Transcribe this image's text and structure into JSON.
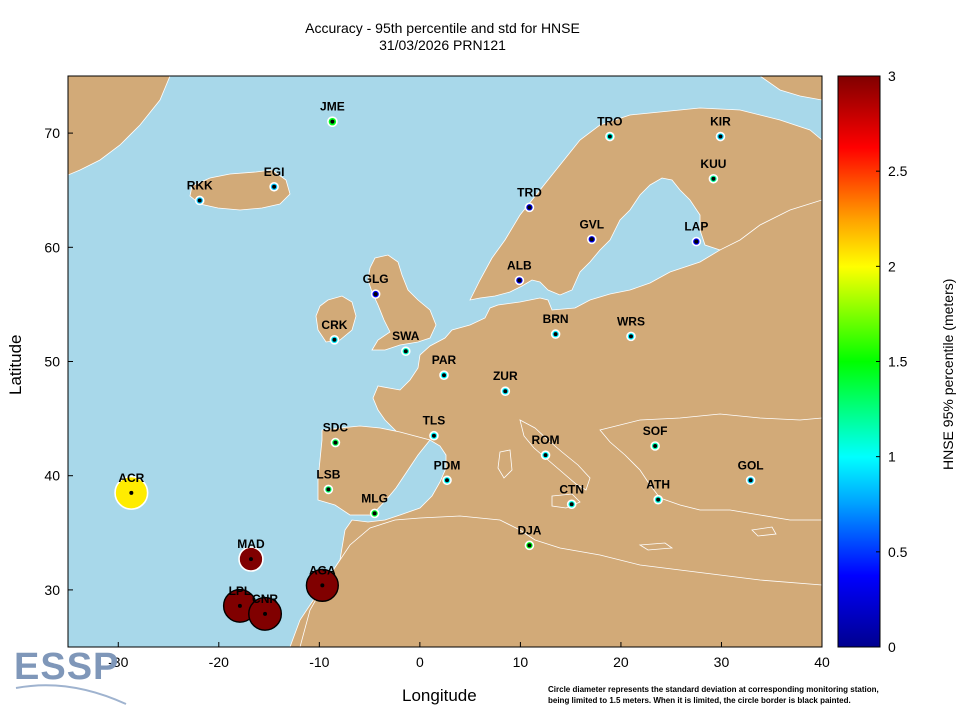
{
  "title": "Accuracy - 95th percentile and std for HNSE",
  "subtitle": "31/03/2026 PRN121",
  "xlabel": "Longitude",
  "ylabel": "Latitude",
  "colorbar": {
    "label": "HNSE 95% percentile (meters)",
    "min": 0,
    "max": 3,
    "ticks": [
      "0",
      "0.5",
      "1",
      "1.5",
      "2",
      "2.5",
      "3"
    ]
  },
  "footnote_line1": "Circle diameter represents the standard deviation at corresponding monitoring station,",
  "footnote_line2": "being limited to 1.5 meters. When it is limited, the circle border is black painted.",
  "logo": "ESSP",
  "colors": {
    "sea": "#a8d8ea",
    "land": "#d2aa78",
    "border": "#ffffff"
  },
  "chart_data": {
    "type": "scatter",
    "xlim": [
      -35,
      40
    ],
    "ylim": [
      25,
      75
    ],
    "xticks": [
      "-30",
      "-20",
      "-10",
      "0",
      "10",
      "20",
      "30",
      "40"
    ],
    "yticks": [
      "30",
      "40",
      "50",
      "60",
      "70"
    ],
    "stations": [
      {
        "name": "JME",
        "lon": -8.7,
        "lat": 71.0,
        "p95": 1.45,
        "std": 0.25,
        "limited": false
      },
      {
        "name": "TRO",
        "lon": 18.9,
        "lat": 69.7,
        "p95": 1.05,
        "std": 0.18,
        "limited": false
      },
      {
        "name": "KIR",
        "lon": 29.9,
        "lat": 69.7,
        "p95": 0.9,
        "std": 0.14,
        "limited": false
      },
      {
        "name": "EGI",
        "lon": -14.5,
        "lat": 65.3,
        "p95": 0.85,
        "std": 0.13,
        "limited": false
      },
      {
        "name": "RKK",
        "lon": -21.9,
        "lat": 64.1,
        "p95": 0.85,
        "std": 0.13,
        "limited": false
      },
      {
        "name": "KUU",
        "lon": 29.2,
        "lat": 66.0,
        "p95": 1.2,
        "std": 0.19,
        "limited": false
      },
      {
        "name": "TRD",
        "lon": 10.9,
        "lat": 63.5,
        "p95": 0.3,
        "std": 0.09,
        "limited": false
      },
      {
        "name": "GVL",
        "lon": 17.1,
        "lat": 60.7,
        "p95": 0.3,
        "std": 0.09,
        "limited": false
      },
      {
        "name": "LAP",
        "lon": 27.5,
        "lat": 60.5,
        "p95": 0.35,
        "std": 0.1,
        "limited": false
      },
      {
        "name": "ALB",
        "lon": 9.9,
        "lat": 57.1,
        "p95": 0.3,
        "std": 0.07,
        "limited": false
      },
      {
        "name": "GLG",
        "lon": -4.4,
        "lat": 55.9,
        "p95": 0.35,
        "std": 0.08,
        "limited": false
      },
      {
        "name": "CRK",
        "lon": -8.5,
        "lat": 51.9,
        "p95": 0.95,
        "std": 0.12,
        "limited": false
      },
      {
        "name": "SWA",
        "lon": -1.4,
        "lat": 50.9,
        "p95": 1.1,
        "std": 0.14,
        "limited": false
      },
      {
        "name": "BRN",
        "lon": 13.5,
        "lat": 52.4,
        "p95": 0.95,
        "std": 0.13,
        "limited": false
      },
      {
        "name": "WRS",
        "lon": 21.0,
        "lat": 52.2,
        "p95": 0.95,
        "std": 0.12,
        "limited": false
      },
      {
        "name": "PAR",
        "lon": 2.4,
        "lat": 48.8,
        "p95": 1.0,
        "std": 0.14,
        "limited": false
      },
      {
        "name": "ZUR",
        "lon": 8.5,
        "lat": 47.4,
        "p95": 0.95,
        "std": 0.12,
        "limited": false
      },
      {
        "name": "TLS",
        "lon": 1.4,
        "lat": 43.5,
        "p95": 1.0,
        "std": 0.13,
        "limited": false
      },
      {
        "name": "SDC",
        "lon": -8.4,
        "lat": 42.9,
        "p95": 1.35,
        "std": 0.16,
        "limited": false
      },
      {
        "name": "ROM",
        "lon": 12.5,
        "lat": 41.8,
        "p95": 1.0,
        "std": 0.12,
        "limited": false
      },
      {
        "name": "SOF",
        "lon": 23.4,
        "lat": 42.6,
        "p95": 1.15,
        "std": 0.15,
        "limited": false
      },
      {
        "name": "LSB",
        "lon": -9.1,
        "lat": 38.8,
        "p95": 1.3,
        "std": 0.16,
        "limited": false
      },
      {
        "name": "PDM",
        "lon": 2.7,
        "lat": 39.6,
        "p95": 1.0,
        "std": 0.12,
        "limited": false
      },
      {
        "name": "GOL",
        "lon": 32.9,
        "lat": 39.6,
        "p95": 0.9,
        "std": 0.19,
        "limited": false
      },
      {
        "name": "ATH",
        "lon": 23.7,
        "lat": 37.9,
        "p95": 1.05,
        "std": 0.14,
        "limited": false
      },
      {
        "name": "CTN",
        "lon": 15.1,
        "lat": 37.5,
        "p95": 1.05,
        "std": 0.12,
        "limited": false
      },
      {
        "name": "MLG",
        "lon": -4.5,
        "lat": 36.7,
        "p95": 1.4,
        "std": 0.19,
        "limited": false
      },
      {
        "name": "DJA",
        "lon": 10.9,
        "lat": 33.9,
        "p95": 1.45,
        "std": 0.17,
        "limited": false
      },
      {
        "name": "ACR",
        "lon": -28.7,
        "lat": 38.5,
        "p95": 2.05,
        "std": 0.9,
        "limited": false
      },
      {
        "name": "MAD",
        "lon": -16.8,
        "lat": 32.7,
        "p95": 3.0,
        "std": 0.66,
        "limited": false
      },
      {
        "name": "AGA",
        "lon": -9.7,
        "lat": 30.4,
        "p95": 3.0,
        "std": 0.88,
        "limited": true
      },
      {
        "name": "LPL",
        "lon": -17.9,
        "lat": 28.6,
        "p95": 3.0,
        "std": 0.9,
        "limited": true
      },
      {
        "name": "CNR",
        "lon": -15.4,
        "lat": 27.9,
        "p95": 3.0,
        "std": 0.9,
        "limited": true
      }
    ]
  }
}
